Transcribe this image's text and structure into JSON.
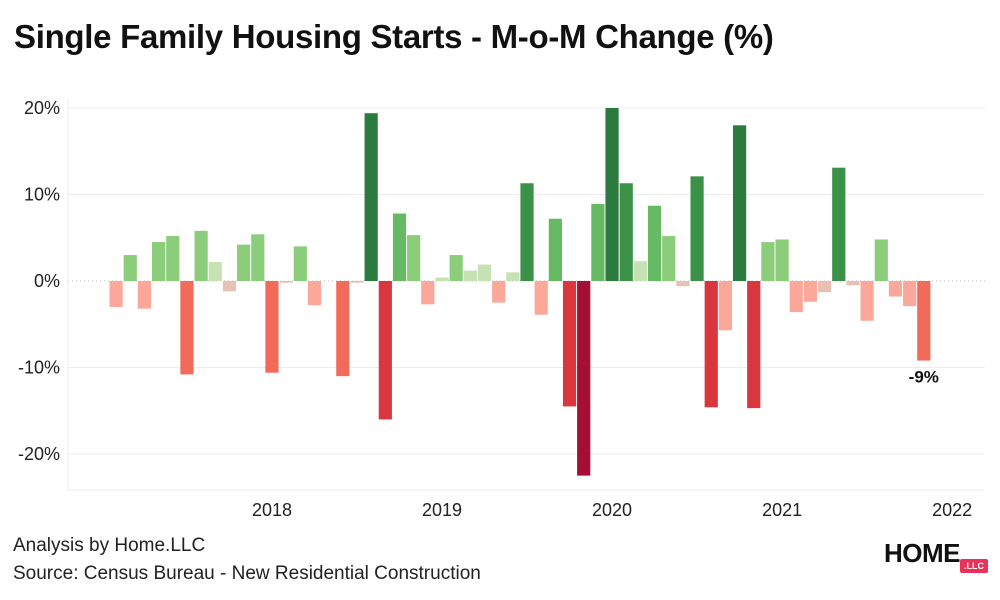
{
  "title": "Single Family Housing Starts - M-o-M Change (%)",
  "footer": {
    "analysis": "Analysis by Home.LLC",
    "source": "Source: Census Bureau - New Residential Construction"
  },
  "logo": {
    "text": "HOME",
    "badge": ".LLC"
  },
  "chart_data": {
    "type": "bar",
    "title": "Single Family Housing Starts - M-o-M Change (%)",
    "xlabel": "",
    "ylabel": "",
    "ylim": [
      -24,
      21
    ],
    "yticks": [
      -20,
      -10,
      0,
      10,
      20
    ],
    "ytick_labels": [
      "-20%",
      "-10%",
      "0%",
      "10%",
      "20%"
    ],
    "year_labels": [
      "2018",
      "2019",
      "2020",
      "2021",
      "2022"
    ],
    "grid": true,
    "legend": "none",
    "color_scale": {
      "strong_negative": "#a50f35",
      "negative": "#d9363e",
      "moderate_negative": "#f16a5a",
      "small_negative": "#fba89a",
      "near_zero_negative": "#e6c1b4",
      "near_zero_positive": "#c6e2b3",
      "small_positive": "#8ccd7c",
      "moderate_positive": "#66ba63",
      "positive": "#3a9147",
      "strong_positive": "#2c7b3e"
    },
    "series": [
      {
        "values": [
          -3.0,
          3.0,
          -3.2,
          4.5,
          5.2,
          -10.8,
          5.8,
          2.2,
          -1.2,
          4.2,
          5.4,
          -10.6,
          -0.2,
          4.0,
          -2.8,
          0.0,
          -11.0,
          -0.2,
          19.4,
          -16.0,
          7.8,
          5.3,
          -2.7,
          0.4,
          3.0,
          1.2,
          1.9,
          -2.5,
          1.0,
          11.3,
          -3.9,
          7.2,
          -14.5,
          -22.5,
          8.9,
          20.0,
          11.3,
          2.3,
          8.7,
          5.2,
          -0.6,
          12.1,
          -14.6,
          -5.7,
          18.0,
          -14.7,
          4.5,
          4.8,
          -3.6,
          -2.4,
          -1.3,
          13.1,
          -0.5,
          -4.6,
          4.8,
          -1.8,
          -2.9,
          -9.2
        ],
        "x_start": "2017-08",
        "x_end": "2022-05"
      }
    ],
    "annotations": [
      {
        "text": "-9%",
        "target": "2022-05"
      }
    ]
  }
}
